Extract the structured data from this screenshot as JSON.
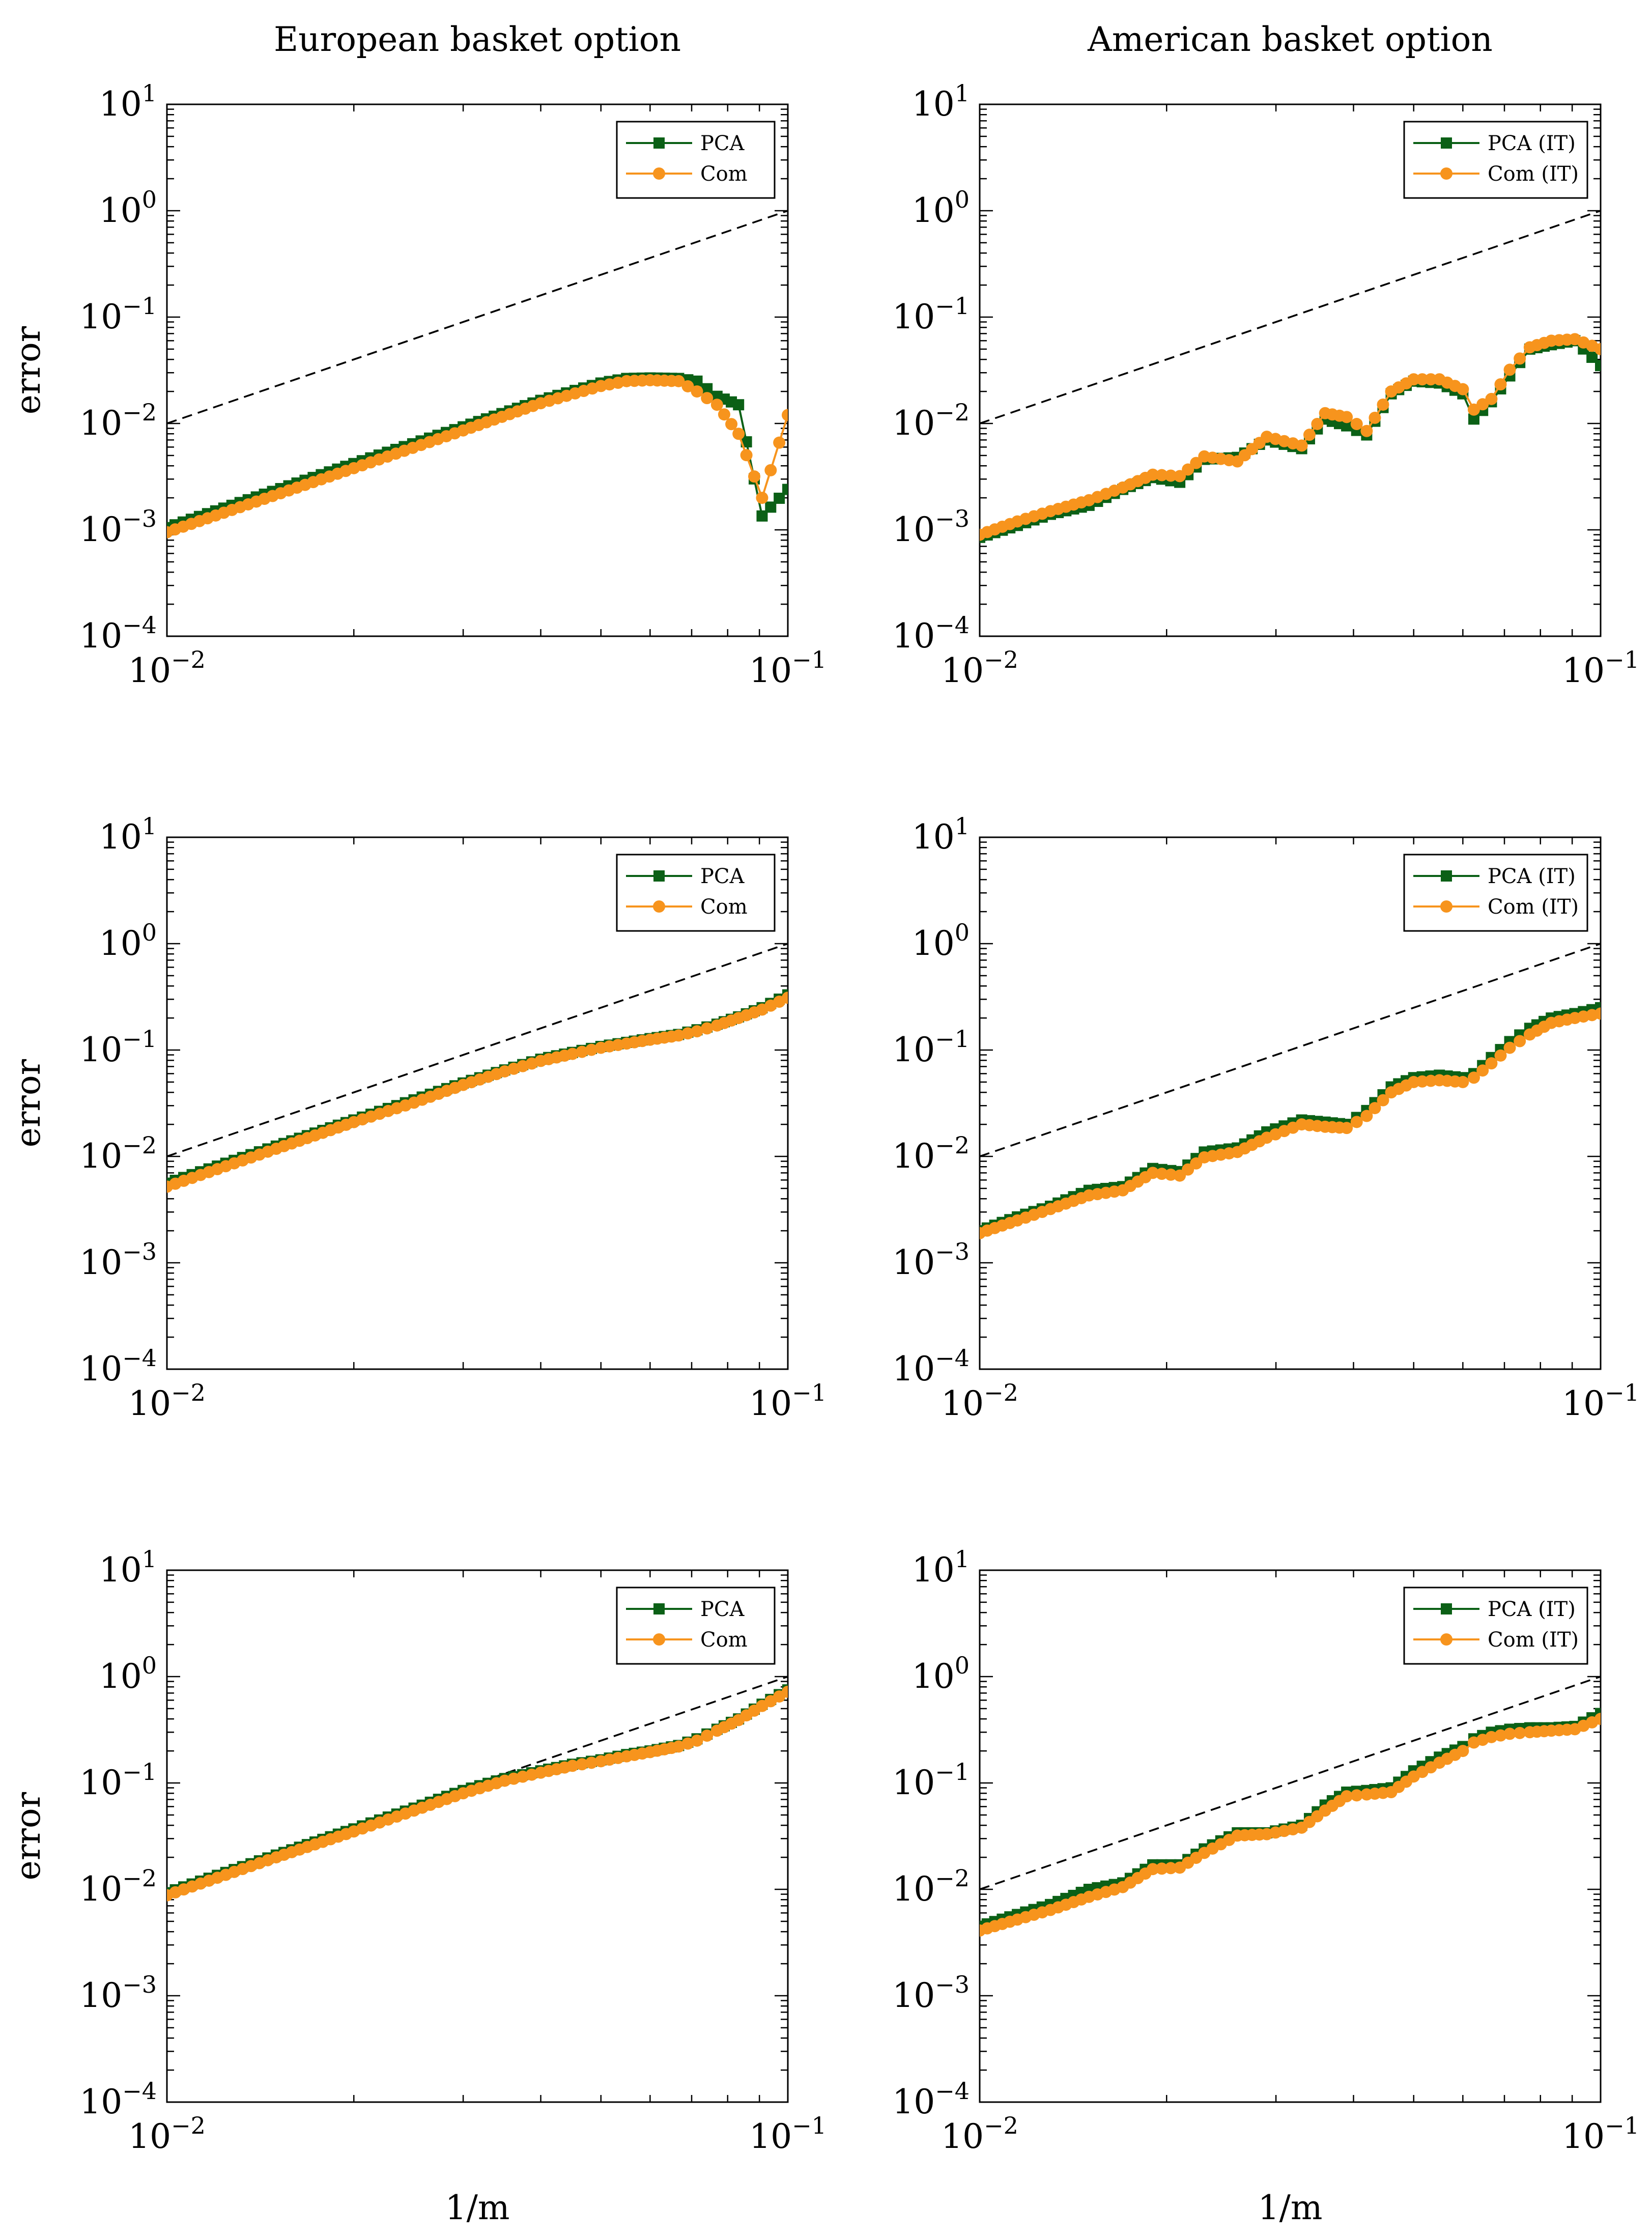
{
  "figure": {
    "col_titles": [
      "European basket option",
      "American basket option"
    ],
    "ylabel": "error",
    "xlabel": "1/m",
    "x_tick_labels": [
      {
        "base": "10",
        "exp": "−2"
      },
      {
        "base": "10",
        "exp": "−1"
      }
    ],
    "y_tick_labels": [
      {
        "base": "10",
        "exp": "1"
      },
      {
        "base": "10",
        "exp": "0"
      },
      {
        "base": "10",
        "exp": "−1"
      },
      {
        "base": "10",
        "exp": "−2"
      },
      {
        "base": "10",
        "exp": "−3"
      },
      {
        "base": "10",
        "exp": "−4"
      }
    ]
  },
  "colors": {
    "pca": "#0b6016",
    "com": "#f7941d",
    "ref": "#000000"
  },
  "chart_data": [
    {
      "type": "line",
      "panel": "european-row1",
      "xscale": "log",
      "yscale": "log",
      "xlim": [
        0.01,
        0.1
      ],
      "ylim": [
        0.0001,
        10
      ],
      "legend_position": "top-right",
      "title": "European basket option",
      "ylabel": "error",
      "xlabel": "",
      "reference": {
        "name": "reference slope 2",
        "x": [
          0.01,
          0.1
        ],
        "y": [
          0.01,
          1
        ]
      },
      "series": [
        {
          "name": "PCA",
          "marker": "square",
          "x": [
            0.01,
            0.02,
            0.03,
            0.04,
            0.05,
            0.055,
            0.06,
            0.0667,
            0.0714,
            0.0769,
            0.0833,
            0.0909,
            0.1
          ],
          "y": [
            0.00105,
            0.0042,
            0.0093,
            0.0165,
            0.024,
            0.0265,
            0.0268,
            0.0265,
            0.025,
            0.018,
            0.015,
            0.00135,
            0.0024
          ]
        },
        {
          "name": "Com",
          "marker": "circle",
          "x": [
            0.01,
            0.02,
            0.03,
            0.04,
            0.05,
            0.055,
            0.06,
            0.0667,
            0.0714,
            0.0769,
            0.0833,
            0.0909,
            0.1
          ],
          "y": [
            0.00095,
            0.0038,
            0.0086,
            0.0155,
            0.0225,
            0.025,
            0.0255,
            0.025,
            0.02,
            0.015,
            0.008,
            0.002,
            0.012
          ]
        }
      ]
    },
    {
      "type": "line",
      "panel": "american-row1",
      "xscale": "log",
      "yscale": "log",
      "xlim": [
        0.01,
        0.1
      ],
      "ylim": [
        0.0001,
        10
      ],
      "legend_position": "top-right",
      "title": "American basket option",
      "ylabel": "",
      "xlabel": "",
      "reference": {
        "name": "reference slope 2",
        "x": [
          0.01,
          0.1
        ],
        "y": [
          0.01,
          1
        ]
      },
      "series": [
        {
          "name": "PCA (IT)",
          "marker": "square",
          "x": [
            0.01,
            0.0115,
            0.013,
            0.015,
            0.017,
            0.019,
            0.021,
            0.023,
            0.026,
            0.029,
            0.033,
            0.036,
            0.039,
            0.042,
            0.046,
            0.05,
            0.055,
            0.06,
            0.0625,
            0.0667,
            0.0714,
            0.0769,
            0.0833,
            0.0909,
            0.1
          ],
          "y": [
            0.00085,
            0.0011,
            0.0014,
            0.0017,
            0.0024,
            0.0031,
            0.0028,
            0.0046,
            0.0048,
            0.007,
            0.0058,
            0.011,
            0.0095,
            0.0078,
            0.019,
            0.025,
            0.024,
            0.019,
            0.011,
            0.016,
            0.028,
            0.05,
            0.055,
            0.06,
            0.035
          ]
        },
        {
          "name": "Com (IT)",
          "marker": "circle",
          "x": [
            0.01,
            0.0115,
            0.013,
            0.015,
            0.017,
            0.019,
            0.021,
            0.023,
            0.026,
            0.029,
            0.033,
            0.036,
            0.039,
            0.042,
            0.046,
            0.05,
            0.055,
            0.06,
            0.0625,
            0.0667,
            0.0714,
            0.0769,
            0.0833,
            0.0909,
            0.1
          ],
          "y": [
            0.0009,
            0.0012,
            0.0015,
            0.0019,
            0.0025,
            0.0033,
            0.0032,
            0.0049,
            0.0044,
            0.0075,
            0.0062,
            0.0125,
            0.0115,
            0.0085,
            0.02,
            0.026,
            0.026,
            0.021,
            0.0135,
            0.017,
            0.032,
            0.052,
            0.06,
            0.062,
            0.05
          ]
        }
      ]
    },
    {
      "type": "line",
      "panel": "european-row2",
      "xscale": "log",
      "yscale": "log",
      "xlim": [
        0.01,
        0.1
      ],
      "ylim": [
        0.0001,
        10
      ],
      "legend_position": "top-right",
      "title": "",
      "ylabel": "error",
      "xlabel": "",
      "reference": {
        "name": "reference slope 2",
        "x": [
          0.01,
          0.1
        ],
        "y": [
          0.01,
          1
        ]
      },
      "series": [
        {
          "name": "PCA",
          "marker": "square",
          "x": [
            0.01,
            0.015,
            0.02,
            0.025,
            0.03,
            0.035,
            0.04,
            0.045,
            0.05,
            0.055,
            0.06,
            0.0667,
            0.0714,
            0.0769,
            0.0833,
            0.0909,
            0.1
          ],
          "y": [
            0.0056,
            0.0125,
            0.022,
            0.034,
            0.049,
            0.065,
            0.082,
            0.095,
            0.108,
            0.118,
            0.128,
            0.14,
            0.155,
            0.175,
            0.205,
            0.25,
            0.33
          ]
        },
        {
          "name": "Com",
          "marker": "circle",
          "x": [
            0.01,
            0.015,
            0.02,
            0.025,
            0.03,
            0.035,
            0.04,
            0.045,
            0.05,
            0.055,
            0.06,
            0.0667,
            0.0714,
            0.0769,
            0.0833,
            0.0909,
            0.1
          ],
          "y": [
            0.0052,
            0.0118,
            0.021,
            0.032,
            0.047,
            0.063,
            0.079,
            0.092,
            0.105,
            0.115,
            0.125,
            0.137,
            0.15,
            0.17,
            0.2,
            0.24,
            0.31
          ]
        }
      ]
    },
    {
      "type": "line",
      "panel": "american-row2",
      "xscale": "log",
      "yscale": "log",
      "xlim": [
        0.01,
        0.1
      ],
      "ylim": [
        0.0001,
        10
      ],
      "legend_position": "top-right",
      "title": "",
      "ylabel": "",
      "xlabel": "",
      "reference": {
        "name": "reference slope 2",
        "x": [
          0.01,
          0.1
        ],
        "y": [
          0.01,
          1
        ]
      },
      "series": [
        {
          "name": "PCA (IT)",
          "marker": "square",
          "x": [
            0.01,
            0.0115,
            0.013,
            0.015,
            0.017,
            0.019,
            0.021,
            0.023,
            0.026,
            0.029,
            0.033,
            0.036,
            0.039,
            0.042,
            0.046,
            0.05,
            0.055,
            0.06,
            0.0625,
            0.0667,
            0.0714,
            0.0769,
            0.0833,
            0.0909,
            0.1
          ],
          "y": [
            0.002,
            0.0027,
            0.0034,
            0.0048,
            0.0052,
            0.0077,
            0.0072,
            0.011,
            0.012,
            0.017,
            0.022,
            0.021,
            0.02,
            0.027,
            0.045,
            0.055,
            0.058,
            0.055,
            0.06,
            0.085,
            0.12,
            0.16,
            0.2,
            0.22,
            0.25
          ]
        },
        {
          "name": "Com (IT)",
          "marker": "circle",
          "x": [
            0.01,
            0.0115,
            0.013,
            0.015,
            0.017,
            0.019,
            0.021,
            0.023,
            0.026,
            0.029,
            0.033,
            0.036,
            0.039,
            0.042,
            0.046,
            0.05,
            0.055,
            0.06,
            0.0625,
            0.0667,
            0.0714,
            0.0769,
            0.0833,
            0.0909,
            0.1
          ],
          "y": [
            0.0019,
            0.0025,
            0.0032,
            0.0043,
            0.0048,
            0.007,
            0.0066,
            0.0098,
            0.011,
            0.015,
            0.02,
            0.019,
            0.0185,
            0.024,
            0.04,
            0.05,
            0.052,
            0.05,
            0.055,
            0.075,
            0.105,
            0.14,
            0.18,
            0.2,
            0.22
          ]
        }
      ]
    },
    {
      "type": "line",
      "panel": "european-row3",
      "xscale": "log",
      "yscale": "log",
      "xlim": [
        0.01,
        0.1
      ],
      "ylim": [
        0.0001,
        10
      ],
      "legend_position": "top-right",
      "title": "",
      "ylabel": "error",
      "xlabel": "1/m",
      "reference": {
        "name": "reference slope 2",
        "x": [
          0.01,
          0.1
        ],
        "y": [
          0.01,
          1
        ]
      },
      "series": [
        {
          "name": "PCA",
          "marker": "square",
          "x": [
            0.01,
            0.015,
            0.02,
            0.025,
            0.03,
            0.035,
            0.04,
            0.045,
            0.05,
            0.055,
            0.06,
            0.0667,
            0.0714,
            0.0769,
            0.0833,
            0.0909,
            0.1
          ],
          "y": [
            0.0093,
            0.021,
            0.037,
            0.058,
            0.085,
            0.11,
            0.13,
            0.15,
            0.165,
            0.185,
            0.2,
            0.225,
            0.26,
            0.32,
            0.4,
            0.55,
            0.75
          ]
        },
        {
          "name": "Com",
          "marker": "circle",
          "x": [
            0.01,
            0.015,
            0.02,
            0.025,
            0.03,
            0.035,
            0.04,
            0.045,
            0.05,
            0.055,
            0.06,
            0.0667,
            0.0714,
            0.0769,
            0.0833,
            0.0909,
            0.1
          ],
          "y": [
            0.0088,
            0.02,
            0.035,
            0.055,
            0.08,
            0.105,
            0.125,
            0.145,
            0.16,
            0.178,
            0.195,
            0.22,
            0.25,
            0.31,
            0.39,
            0.53,
            0.72
          ]
        }
      ]
    },
    {
      "type": "line",
      "panel": "american-row3",
      "xscale": "log",
      "yscale": "log",
      "xlim": [
        0.01,
        0.1
      ],
      "ylim": [
        0.0001,
        10
      ],
      "legend_position": "top-right",
      "title": "",
      "ylabel": "",
      "xlabel": "1/m",
      "reference": {
        "name": "reference slope 2",
        "x": [
          0.01,
          0.1
        ],
        "y": [
          0.01,
          1
        ]
      },
      "series": [
        {
          "name": "PCA (IT)",
          "marker": "square",
          "x": [
            0.01,
            0.0115,
            0.013,
            0.015,
            0.017,
            0.019,
            0.021,
            0.023,
            0.026,
            0.029,
            0.033,
            0.036,
            0.039,
            0.042,
            0.046,
            0.05,
            0.055,
            0.06,
            0.0625,
            0.0667,
            0.0714,
            0.0769,
            0.0833,
            0.0909,
            0.1
          ],
          "y": [
            0.0045,
            0.0058,
            0.0072,
            0.01,
            0.0115,
            0.017,
            0.017,
            0.024,
            0.034,
            0.034,
            0.04,
            0.062,
            0.082,
            0.085,
            0.09,
            0.13,
            0.175,
            0.22,
            0.26,
            0.3,
            0.32,
            0.33,
            0.33,
            0.34,
            0.45
          ]
        },
        {
          "name": "Com (IT)",
          "marker": "circle",
          "x": [
            0.01,
            0.0115,
            0.013,
            0.015,
            0.017,
            0.019,
            0.021,
            0.023,
            0.026,
            0.029,
            0.033,
            0.036,
            0.039,
            0.042,
            0.046,
            0.05,
            0.055,
            0.06,
            0.0625,
            0.0667,
            0.0714,
            0.0769,
            0.0833,
            0.0909,
            0.1
          ],
          "y": [
            0.0041,
            0.0052,
            0.0064,
            0.0085,
            0.0105,
            0.0155,
            0.016,
            0.022,
            0.032,
            0.033,
            0.038,
            0.055,
            0.075,
            0.078,
            0.082,
            0.115,
            0.155,
            0.2,
            0.24,
            0.27,
            0.29,
            0.3,
            0.31,
            0.32,
            0.4
          ]
        }
      ]
    }
  ]
}
